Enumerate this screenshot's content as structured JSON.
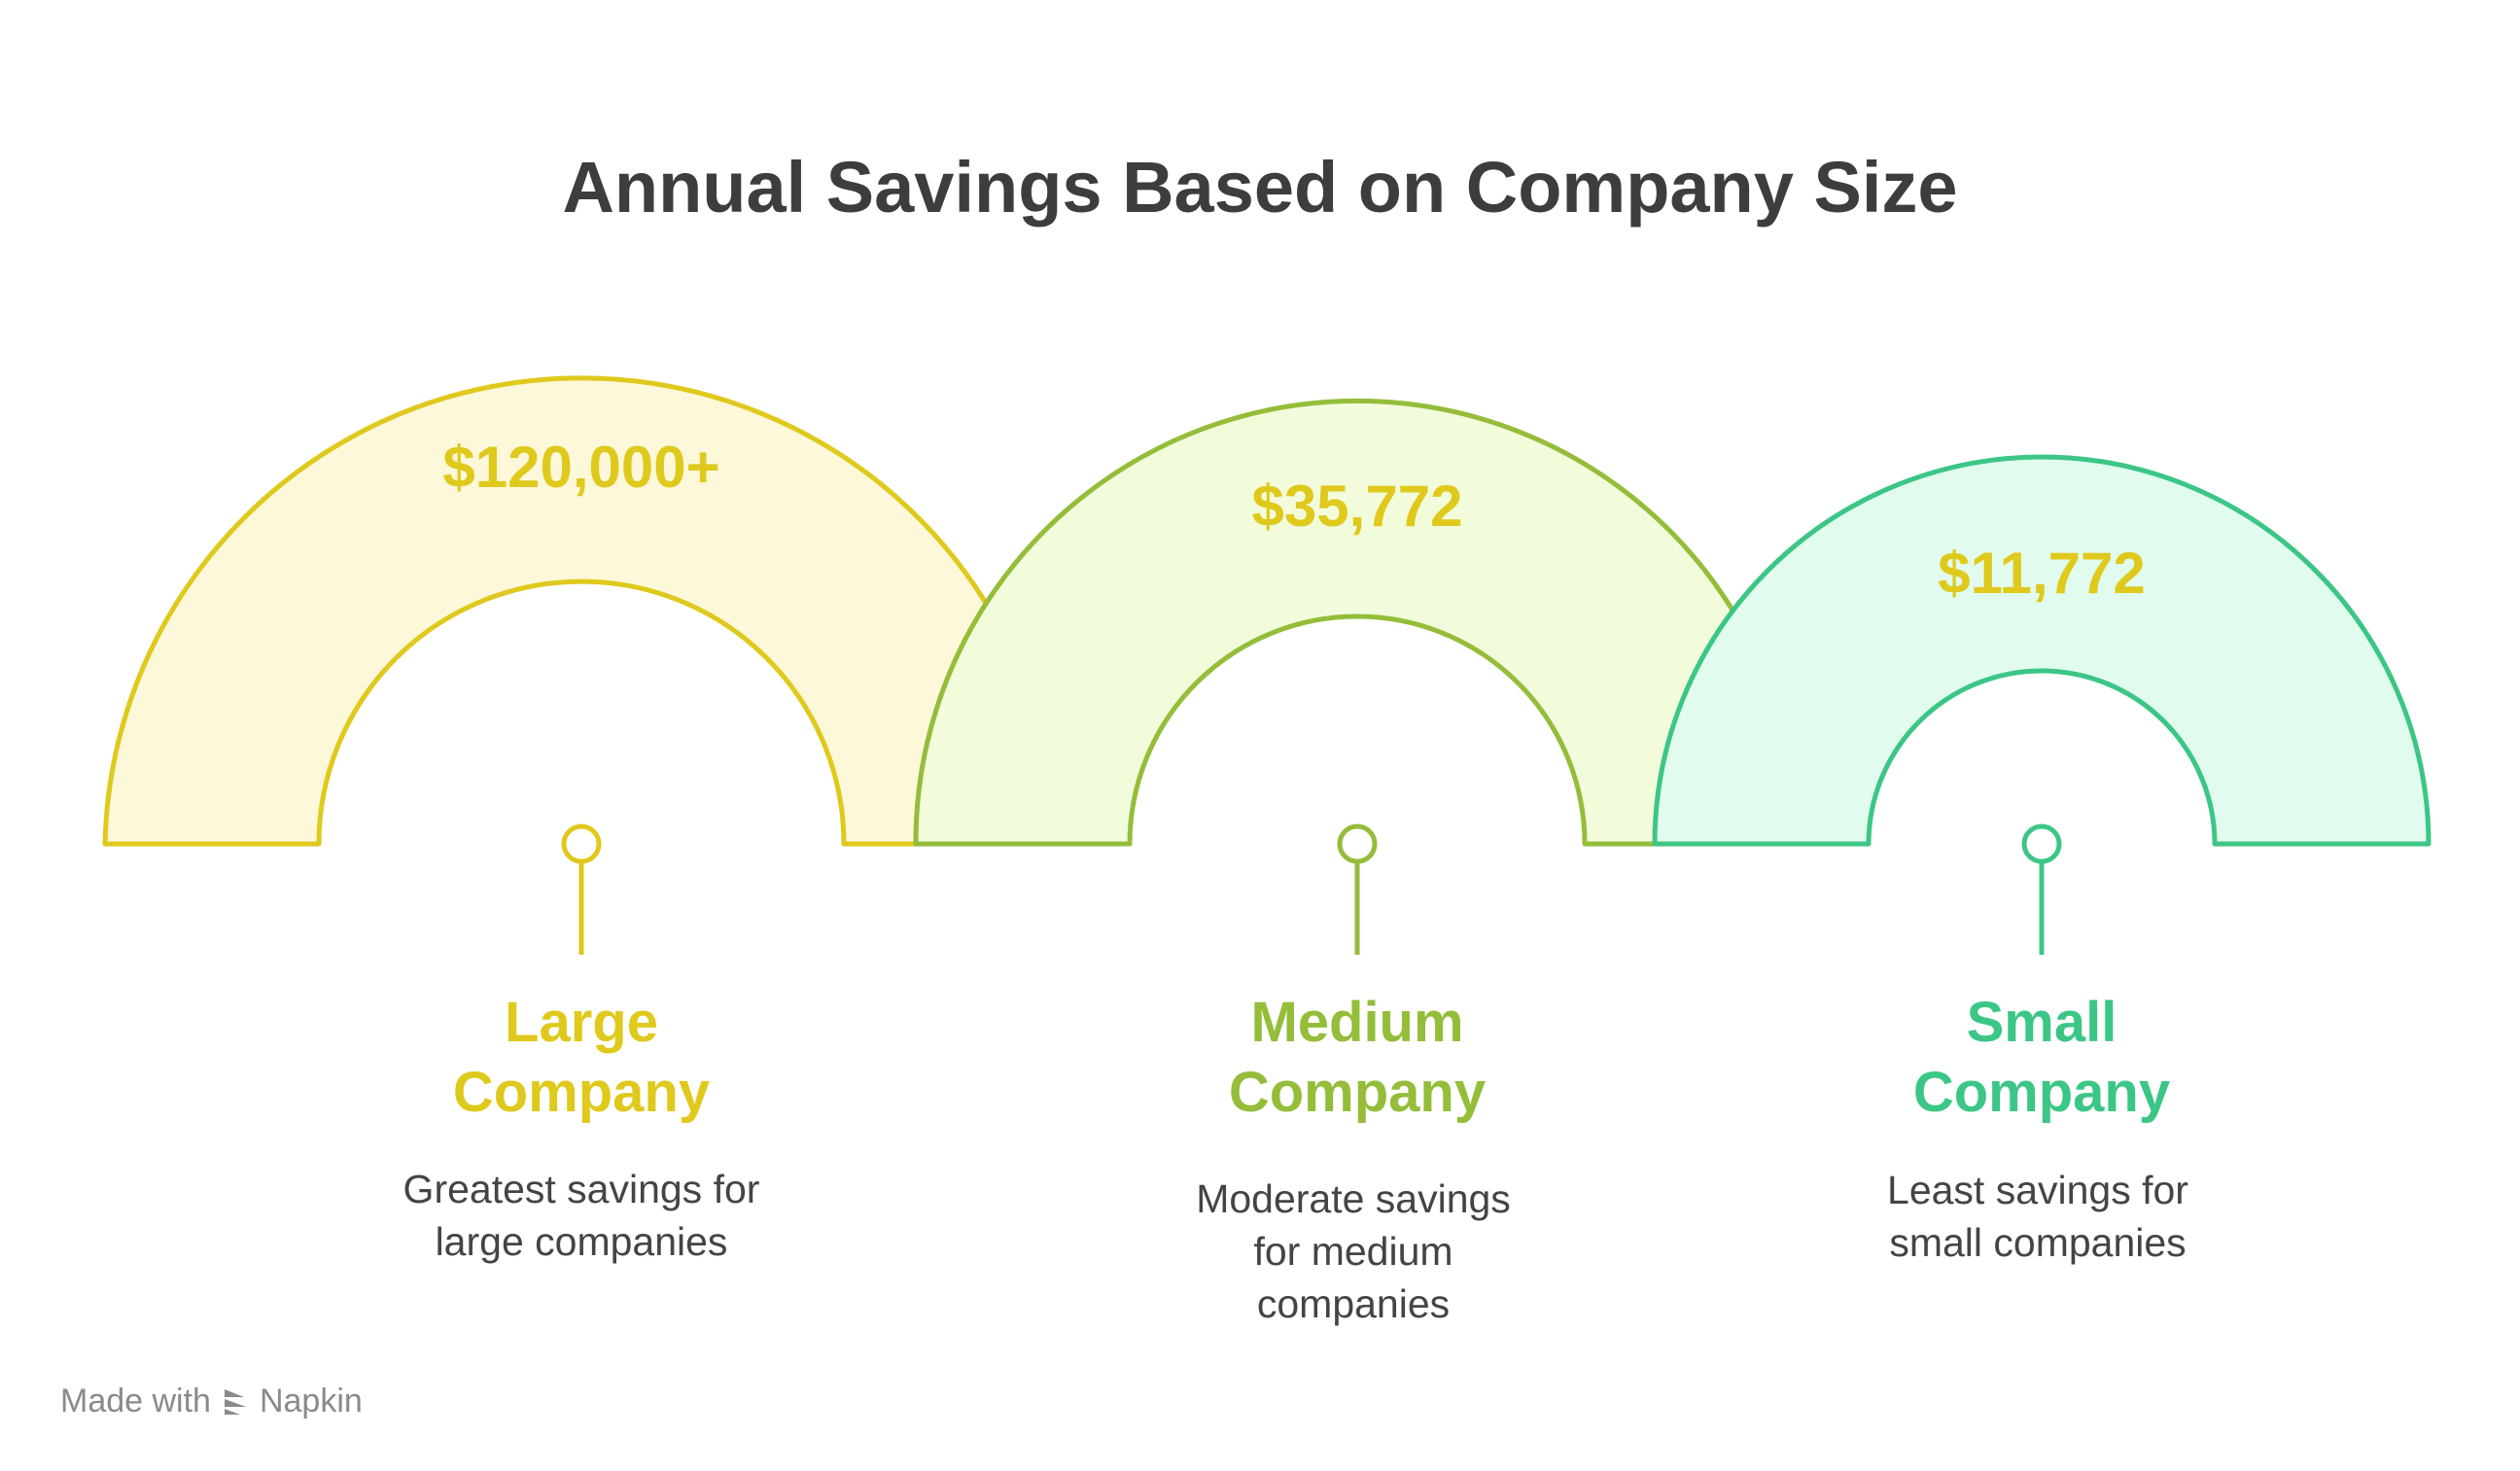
{
  "title": "Annual Savings Based on Company Size",
  "colors": {
    "large": {
      "stroke": "#dfc91c",
      "fill": "#fdf8d9",
      "text": "#dfc91c"
    },
    "medium": {
      "stroke": "#94bd3a",
      "fill": "#f2fcdb",
      "text": "#94bd3a"
    },
    "small": {
      "stroke": "#3cc685",
      "fill": "#e1fbee",
      "text": "#3cc685"
    },
    "value_text": "#dfc91c"
  },
  "items": [
    {
      "value": "$120,000+",
      "label_line1": "Large",
      "label_line2": "Company",
      "desc_line1": "Greatest savings for",
      "desc_line2": "large companies"
    },
    {
      "value": "$35,772",
      "label_line1": "Medium",
      "label_line2": "Company",
      "desc_line1": "Moderate savings",
      "desc_line2": "for medium",
      "desc_line3": "companies"
    },
    {
      "value": "$11,772",
      "label_line1": "Small",
      "label_line2": "Company",
      "desc_line1": "Least savings for",
      "desc_line2": "small companies"
    }
  ],
  "footer": {
    "prefix": "Made with",
    "brand": "Napkin",
    "icon": "napkin-logo-icon"
  }
}
